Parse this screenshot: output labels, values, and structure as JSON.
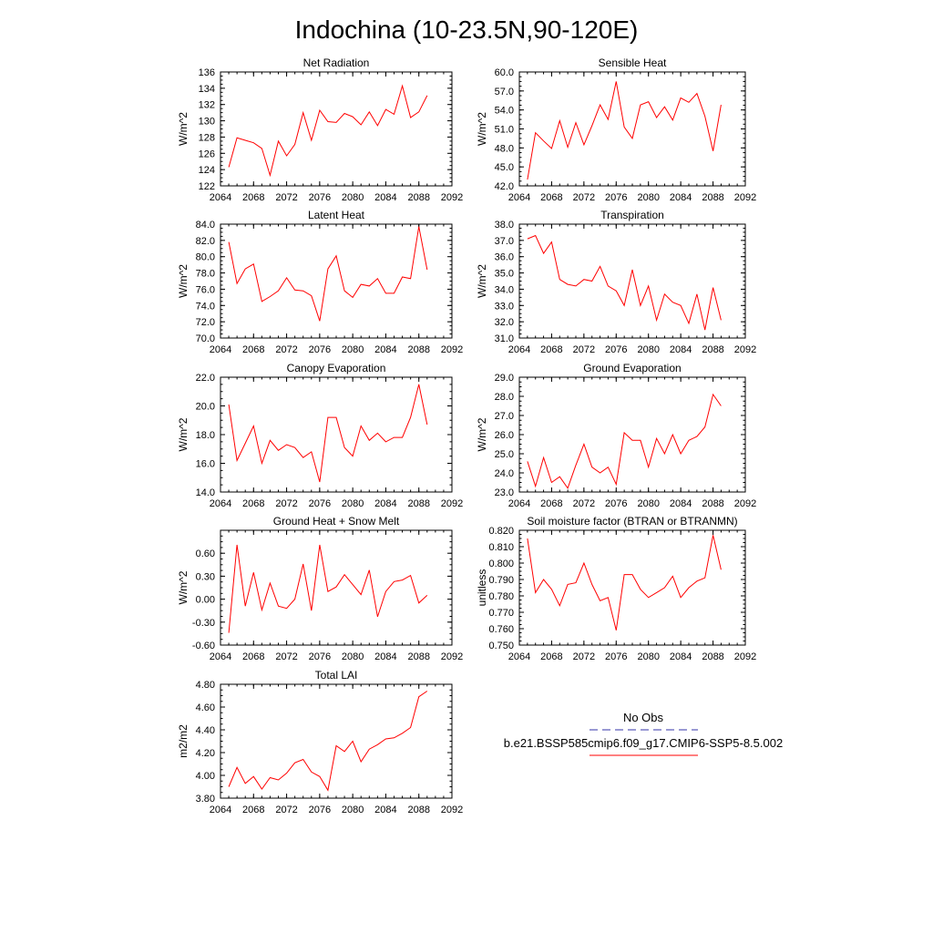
{
  "title": "Indochina (10-23.5N,90-120E)",
  "legend": {
    "items": [
      {
        "label": "No Obs",
        "color": "#3333aa",
        "dash": "dashed"
      },
      {
        "label": "b.e21.BSSP585cmip6.f09_g17.CMIP6-SSP5-8.5.002",
        "color": "#ff0000",
        "dash": "solid"
      }
    ]
  },
  "chart_data": [
    {
      "type": "line",
      "title": "Net Radiation",
      "ylabel": "W/m^2",
      "xlim": [
        2064,
        2092
      ],
      "ylim": [
        122,
        136
      ],
      "xticks": [
        "2064",
        "2068",
        "2072",
        "2076",
        "2080",
        "2084",
        "2088",
        "2092"
      ],
      "yticks": [
        "122",
        "124",
        "126",
        "128",
        "130",
        "132",
        "134",
        "136"
      ],
      "series": [
        {
          "color": "#ff0000",
          "x": [
            2065,
            2066,
            2067,
            2068,
            2069,
            2070,
            2071,
            2072,
            2073,
            2074,
            2075,
            2076,
            2077,
            2078,
            2079,
            2080,
            2081,
            2082,
            2083,
            2084,
            2085,
            2086,
            2087,
            2088,
            2089
          ],
          "values": [
            124.3,
            127.9,
            127.6,
            127.3,
            126.6,
            123.3,
            127.5,
            125.7,
            127.1,
            131.0,
            127.6,
            131.3,
            129.9,
            129.8,
            130.9,
            130.5,
            129.5,
            131.1,
            129.4,
            131.4,
            130.8,
            134.3,
            130.4,
            131.1,
            133.1
          ]
        }
      ]
    },
    {
      "type": "line",
      "title": "Sensible Heat",
      "ylabel": "W/m^2",
      "xlim": [
        2064,
        2092
      ],
      "ylim": [
        42,
        60
      ],
      "xticks": [
        "2064",
        "2068",
        "2072",
        "2076",
        "2080",
        "2084",
        "2088",
        "2092"
      ],
      "yticks": [
        "42.0",
        "45.0",
        "48.0",
        "51.0",
        "54.0",
        "57.0",
        "60.0"
      ],
      "series": [
        {
          "color": "#ff0000",
          "x": [
            2065,
            2066,
            2067,
            2068,
            2069,
            2070,
            2071,
            2072,
            2073,
            2074,
            2075,
            2076,
            2077,
            2078,
            2079,
            2080,
            2081,
            2082,
            2083,
            2084,
            2085,
            2086,
            2087,
            2088,
            2089
          ],
          "values": [
            43.0,
            50.4,
            49.1,
            47.9,
            52.3,
            48.1,
            52.0,
            48.5,
            51.5,
            54.8,
            52.5,
            58.5,
            51.3,
            49.5,
            54.8,
            55.3,
            52.8,
            54.5,
            52.4,
            55.9,
            55.2,
            56.6,
            53.0,
            47.5,
            54.8
          ]
        }
      ]
    },
    {
      "type": "line",
      "title": "Latent Heat",
      "ylabel": "W/m^2",
      "xlim": [
        2064,
        2092
      ],
      "ylim": [
        70,
        84
      ],
      "xticks": [
        "2064",
        "2068",
        "2072",
        "2076",
        "2080",
        "2084",
        "2088",
        "2092"
      ],
      "yticks": [
        "70.0",
        "72.0",
        "74.0",
        "76.0",
        "78.0",
        "80.0",
        "82.0",
        "84.0"
      ],
      "series": [
        {
          "color": "#ff0000",
          "x": [
            2065,
            2066,
            2067,
            2068,
            2069,
            2070,
            2071,
            2072,
            2073,
            2074,
            2075,
            2076,
            2077,
            2078,
            2079,
            2080,
            2081,
            2082,
            2083,
            2084,
            2085,
            2086,
            2087,
            2088,
            2089
          ],
          "values": [
            81.8,
            76.7,
            78.5,
            79.1,
            74.5,
            75.1,
            75.8,
            77.4,
            75.9,
            75.8,
            75.2,
            72.1,
            78.5,
            80.1,
            75.8,
            75.0,
            76.6,
            76.4,
            77.3,
            75.5,
            75.5,
            77.5,
            77.3,
            83.7,
            78.4
          ]
        }
      ]
    },
    {
      "type": "line",
      "title": "Transpiration",
      "ylabel": "W/m^2",
      "xlim": [
        2064,
        2092
      ],
      "ylim": [
        31,
        38
      ],
      "xticks": [
        "2064",
        "2068",
        "2072",
        "2076",
        "2080",
        "2084",
        "2088",
        "2092"
      ],
      "yticks": [
        "31.0",
        "32.0",
        "33.0",
        "34.0",
        "35.0",
        "36.0",
        "37.0",
        "38.0"
      ],
      "series": [
        {
          "color": "#ff0000",
          "x": [
            2065,
            2066,
            2067,
            2068,
            2069,
            2070,
            2071,
            2072,
            2073,
            2074,
            2075,
            2076,
            2077,
            2078,
            2079,
            2080,
            2081,
            2082,
            2083,
            2084,
            2085,
            2086,
            2087,
            2088,
            2089
          ],
          "values": [
            37.1,
            37.3,
            36.2,
            36.9,
            34.6,
            34.3,
            34.2,
            34.6,
            34.5,
            35.4,
            34.2,
            33.9,
            33.0,
            35.2,
            33.0,
            34.2,
            32.1,
            33.7,
            33.2,
            33.0,
            31.9,
            33.7,
            31.5,
            34.1,
            32.1
          ]
        }
      ]
    },
    {
      "type": "line",
      "title": "Canopy Evaporation",
      "ylabel": "W/m^2",
      "xlim": [
        2064,
        2092
      ],
      "ylim": [
        14,
        22
      ],
      "xticks": [
        "2064",
        "2068",
        "2072",
        "2076",
        "2080",
        "2084",
        "2088",
        "2092"
      ],
      "yticks": [
        "14.0",
        "16.0",
        "18.0",
        "20.0",
        "22.0"
      ],
      "series": [
        {
          "color": "#ff0000",
          "x": [
            2065,
            2066,
            2067,
            2068,
            2069,
            2070,
            2071,
            2072,
            2073,
            2074,
            2075,
            2076,
            2077,
            2078,
            2079,
            2080,
            2081,
            2082,
            2083,
            2084,
            2085,
            2086,
            2087,
            2088,
            2089
          ],
          "values": [
            20.1,
            16.2,
            17.4,
            18.6,
            16.0,
            17.6,
            16.9,
            17.3,
            17.1,
            16.4,
            16.8,
            14.7,
            19.2,
            19.2,
            17.1,
            16.5,
            18.6,
            17.6,
            18.1,
            17.5,
            17.8,
            17.8,
            19.2,
            21.5,
            18.7
          ]
        }
      ]
    },
    {
      "type": "line",
      "title": "Ground Evaporation",
      "ylabel": "W/m^2",
      "xlim": [
        2064,
        2092
      ],
      "ylim": [
        23,
        29
      ],
      "xticks": [
        "2064",
        "2068",
        "2072",
        "2076",
        "2080",
        "2084",
        "2088",
        "2092"
      ],
      "yticks": [
        "23.0",
        "24.0",
        "25.0",
        "26.0",
        "27.0",
        "28.0",
        "29.0"
      ],
      "series": [
        {
          "color": "#ff0000",
          "x": [
            2065,
            2066,
            2067,
            2068,
            2069,
            2070,
            2071,
            2072,
            2073,
            2074,
            2075,
            2076,
            2077,
            2078,
            2079,
            2080,
            2081,
            2082,
            2083,
            2084,
            2085,
            2086,
            2087,
            2088,
            2089
          ],
          "values": [
            24.6,
            23.3,
            24.8,
            23.5,
            23.8,
            23.2,
            24.4,
            25.5,
            24.3,
            24.0,
            24.3,
            23.4,
            26.1,
            25.7,
            25.7,
            24.3,
            25.8,
            25.0,
            26.0,
            25.0,
            25.7,
            25.9,
            26.4,
            28.1,
            27.5
          ]
        }
      ]
    },
    {
      "type": "line",
      "title": "Ground Heat + Snow Melt",
      "ylabel": "W/m^2",
      "xlim": [
        2064,
        2092
      ],
      "ylim": [
        -0.6,
        0.9
      ],
      "xticks": [
        "2064",
        "2068",
        "2072",
        "2076",
        "2080",
        "2084",
        "2088",
        "2092"
      ],
      "yticks": [
        "-0.60",
        "-0.30",
        "0.00",
        "0.30",
        "0.60"
      ],
      "series": [
        {
          "color": "#ff0000",
          "x": [
            2065,
            2066,
            2067,
            2068,
            2069,
            2070,
            2071,
            2072,
            2073,
            2074,
            2075,
            2076,
            2077,
            2078,
            2079,
            2080,
            2081,
            2082,
            2083,
            2084,
            2085,
            2086,
            2087,
            2088,
            2089
          ],
          "values": [
            -0.44,
            0.71,
            -0.09,
            0.35,
            -0.14,
            0.21,
            -0.09,
            -0.12,
            0.0,
            0.46,
            -0.15,
            0.71,
            0.1,
            0.16,
            0.32,
            0.19,
            0.06,
            0.38,
            -0.23,
            0.1,
            0.23,
            0.25,
            0.31,
            -0.05,
            0.05
          ]
        }
      ]
    },
    {
      "type": "line",
      "title": "Soil moisture factor (BTRAN or BTRANMN)",
      "ylabel": "unitless",
      "xlim": [
        2064,
        2092
      ],
      "ylim": [
        0.75,
        0.82
      ],
      "xticks": [
        "2064",
        "2068",
        "2072",
        "2076",
        "2080",
        "2084",
        "2088",
        "2092"
      ],
      "yticks": [
        "0.750",
        "0.760",
        "0.770",
        "0.780",
        "0.790",
        "0.800",
        "0.810",
        "0.820"
      ],
      "series": [
        {
          "color": "#ff0000",
          "x": [
            2065,
            2066,
            2067,
            2068,
            2069,
            2070,
            2071,
            2072,
            2073,
            2074,
            2075,
            2076,
            2077,
            2078,
            2079,
            2080,
            2081,
            2082,
            2083,
            2084,
            2085,
            2086,
            2087,
            2088,
            2089
          ],
          "values": [
            0.815,
            0.782,
            0.79,
            0.784,
            0.774,
            0.787,
            0.788,
            0.8,
            0.787,
            0.777,
            0.779,
            0.759,
            0.793,
            0.793,
            0.784,
            0.779,
            0.782,
            0.785,
            0.792,
            0.779,
            0.785,
            0.789,
            0.791,
            0.817,
            0.796
          ]
        }
      ]
    },
    {
      "type": "line",
      "title": "Total LAI",
      "ylabel": "m2/m2",
      "xlim": [
        2064,
        2092
      ],
      "ylim": [
        3.8,
        4.8
      ],
      "xticks": [
        "2064",
        "2068",
        "2072",
        "2076",
        "2080",
        "2084",
        "2088",
        "2092"
      ],
      "yticks": [
        "3.80",
        "4.00",
        "4.20",
        "4.40",
        "4.60",
        "4.80"
      ],
      "series": [
        {
          "color": "#ff0000",
          "x": [
            2065,
            2066,
            2067,
            2068,
            2069,
            2070,
            2071,
            2072,
            2073,
            2074,
            2075,
            2076,
            2077,
            2078,
            2079,
            2080,
            2081,
            2082,
            2083,
            2084,
            2085,
            2086,
            2087,
            2088,
            2089
          ],
          "values": [
            3.9,
            4.07,
            3.93,
            3.99,
            3.88,
            3.98,
            3.96,
            4.02,
            4.11,
            4.14,
            4.03,
            3.99,
            3.87,
            4.26,
            4.21,
            4.3,
            4.12,
            4.23,
            4.27,
            4.32,
            4.33,
            4.37,
            4.42,
            4.69,
            4.74
          ]
        }
      ]
    }
  ]
}
